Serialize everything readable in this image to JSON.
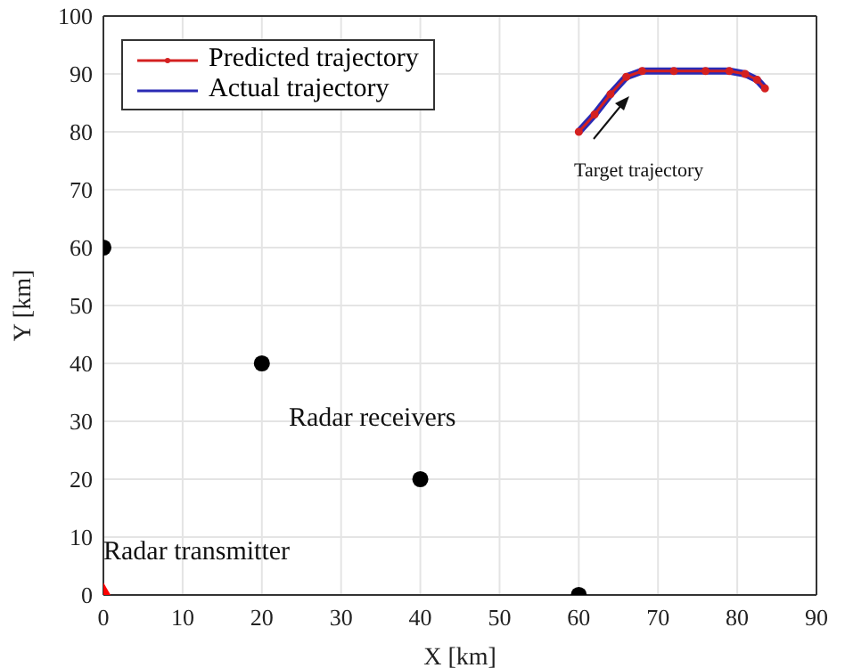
{
  "chart_data": {
    "type": "line",
    "xlabel": "X [km]",
    "ylabel": "Y [km]",
    "xlim": [
      0,
      90
    ],
    "xticks": [
      0,
      10,
      20,
      30,
      40,
      50,
      60,
      70,
      80,
      90
    ],
    "ylim": [
      0,
      100
    ],
    "yticks": [
      0,
      10,
      20,
      30,
      40,
      50,
      60,
      70,
      80,
      90,
      100
    ],
    "grid": true,
    "legend": "top left",
    "series": [
      {
        "name": "Predicted trajectory",
        "color": "#d42020",
        "marker": "circle",
        "x": [
          60,
          62,
          64,
          66,
          68,
          72,
          76,
          79,
          81,
          82.5,
          83.5
        ],
        "values": [
          80,
          83,
          86.5,
          89.5,
          90.5,
          90.5,
          90.5,
          90.5,
          90,
          89,
          87.5
        ]
      },
      {
        "name": "Actual trajectory",
        "color": "#2a2ab4",
        "marker": "none",
        "x": [
          60,
          62,
          64,
          66,
          68,
          72,
          76,
          79,
          81,
          82.5,
          83.5
        ],
        "values": [
          80,
          83,
          86.5,
          89.5,
          90.5,
          90.5,
          90.5,
          90.5,
          90,
          89,
          87.5
        ]
      },
      {
        "type": "scatter",
        "color": "#000000",
        "marker": "circle",
        "x": [
          0,
          20,
          40,
          60
        ],
        "values": [
          60,
          40,
          20,
          0
        ]
      },
      {
        "type": "scatter",
        "color": "#ff0000",
        "marker": "triangle",
        "x": [
          0
        ],
        "values": [
          0
        ]
      }
    ],
    "annotations": [
      "Radar receivers",
      "Radar transmitter",
      "Target trajectory"
    ]
  }
}
